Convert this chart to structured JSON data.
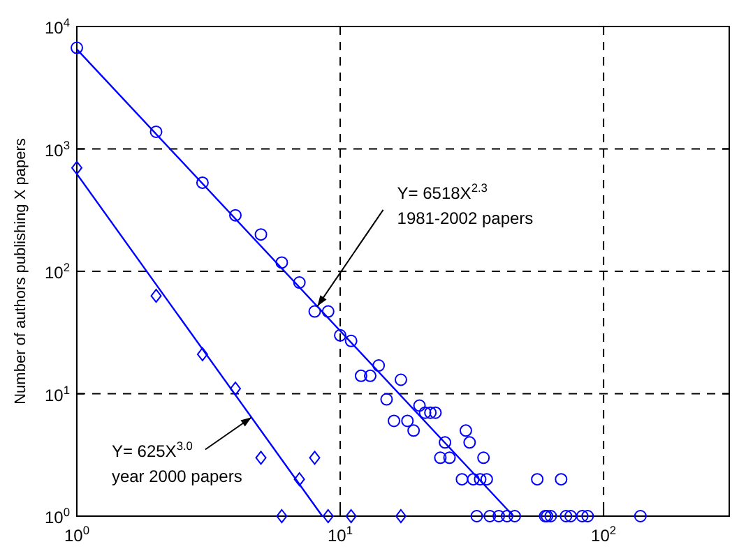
{
  "chart_data": {
    "type": "scatter",
    "ylabel": "Number of authors publishing X papers",
    "log": "xy",
    "grid": true,
    "xlim": [
      1,
      300
    ],
    "ylim": [
      1,
      10000
    ],
    "xticks": [
      {
        "value": 1,
        "label": "10$^{0}$"
      },
      {
        "value": 10,
        "label": "10$^{1}$"
      },
      {
        "value": 100,
        "label": "10$^{2}$"
      }
    ],
    "yticks": [
      {
        "value": 1,
        "label": "10$^{0}$"
      },
      {
        "value": 10,
        "label": "10$^{1}$"
      },
      {
        "value": 100,
        "label": "10$^{2}$"
      },
      {
        "value": 1000,
        "label": "10$^{3}$"
      },
      {
        "value": 10000,
        "label": "10$^{4}$"
      }
    ],
    "series": [
      {
        "type": "scatter",
        "marker": "circle",
        "color": "#0000ff",
        "x": [
          1,
          2,
          3,
          4,
          5,
          6,
          7,
          8,
          9,
          10,
          11,
          12,
          13,
          14,
          15,
          16,
          17,
          18,
          19,
          20,
          21,
          22,
          23,
          24,
          25,
          26,
          29,
          30,
          31,
          32,
          33,
          34,
          35,
          36,
          37,
          40,
          43,
          46,
          56,
          60,
          61,
          63,
          69,
          72,
          75,
          83,
          87,
          138
        ],
        "values": [
          6700,
          1380,
          530,
          287,
          200,
          118,
          81,
          47,
          47,
          30,
          27,
          14,
          14,
          17,
          9,
          6,
          13,
          6,
          5,
          8,
          7,
          7,
          7,
          3,
          4,
          3,
          2,
          5,
          4,
          2,
          1,
          2,
          3,
          2,
          1,
          1,
          1,
          1,
          2,
          1,
          1,
          1,
          2,
          1,
          1,
          1,
          1,
          1
        ]
      },
      {
        "type": "scatter",
        "marker": "diamond",
        "color": "#0000ff",
        "x": [
          1,
          2,
          3,
          4,
          5,
          6,
          7,
          8,
          9,
          11,
          17
        ],
        "values": [
          700,
          63,
          21,
          11,
          3,
          1,
          2,
          3,
          1,
          1,
          1
        ]
      },
      {
        "type": "line",
        "marker": "none",
        "color": "#0000ff",
        "x": [
          1,
          45.5
        ],
        "values": [
          6518,
          1
        ]
      },
      {
        "type": "line",
        "marker": "none",
        "color": "#0000ff",
        "x": [
          1,
          8.55
        ],
        "values": [
          625,
          1
        ]
      }
    ],
    "annotations": [
      {
        "text": "Y= 6518X$^{2.3}$\n1981-2002 papers",
        "x": 8.2,
        "y": 52
      },
      {
        "text": "Y= 625X$^{3.0}$\nyear 2000 papers",
        "x": 4.6,
        "y": 6.4
      }
    ]
  }
}
